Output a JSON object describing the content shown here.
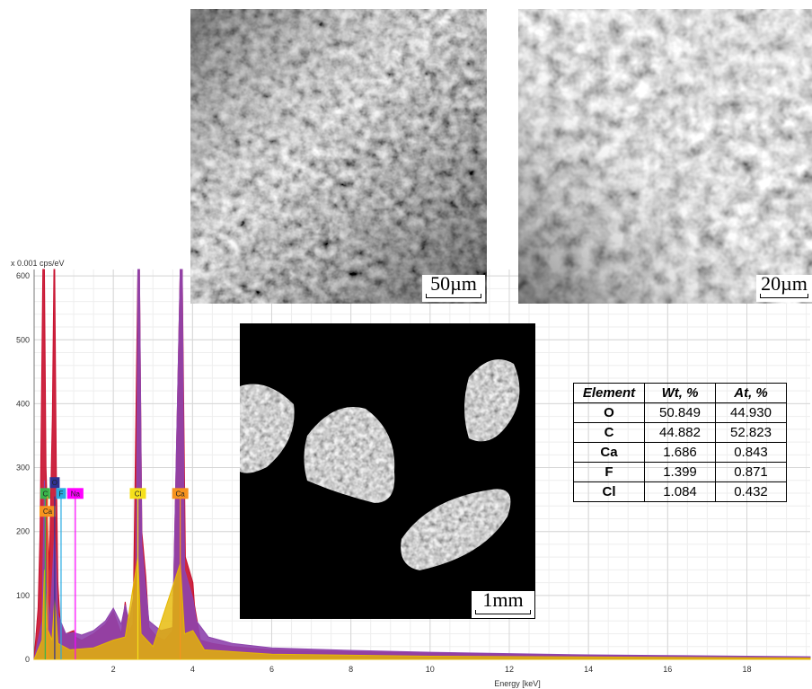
{
  "chart_data": {
    "type": "line",
    "title": "",
    "xlabel": "Energy [keV]",
    "ylabel": "x 0.001 cps/eV",
    "xlim": [
      0,
      19.6
    ],
    "ylim": [
      0,
      610
    ],
    "x_ticks": [
      2,
      4,
      6,
      8,
      10,
      12,
      14,
      16,
      18
    ],
    "y_ticks": [
      0,
      100,
      200,
      300,
      400,
      500,
      600
    ],
    "grid": true,
    "series": [
      {
        "color": "#c8102e",
        "x": [
          0.0,
          0.1,
          0.15,
          0.22,
          0.26,
          0.3,
          0.38,
          0.46,
          0.5,
          0.52,
          0.56,
          0.6,
          0.66,
          0.8,
          1.0,
          1.04,
          1.2,
          1.5,
          1.8,
          2.0,
          2.2,
          2.3,
          2.4,
          2.5,
          2.62,
          2.66,
          2.72,
          2.82,
          2.9,
          3.1,
          3.3,
          3.5,
          3.69,
          3.74,
          3.82,
          4.01,
          4.05,
          4.2,
          4.5,
          5.0,
          6.0,
          8.0,
          10.0,
          12.0,
          14.0,
          16.0,
          18.0,
          19.6
        ],
        "y": [
          0,
          80,
          200,
          610,
          610,
          300,
          140,
          380,
          610,
          610,
          300,
          120,
          55,
          40,
          45,
          35,
          30,
          40,
          55,
          75,
          40,
          90,
          45,
          55,
          610,
          610,
          200,
          130,
          50,
          35,
          30,
          45,
          610,
          610,
          160,
          120,
          85,
          30,
          25,
          20,
          15,
          12,
          10,
          8,
          6,
          5,
          4,
          3
        ]
      },
      {
        "color": "#8e44ad",
        "x": [
          0.0,
          0.2,
          0.26,
          0.3,
          0.4,
          0.52,
          0.6,
          0.8,
          1.0,
          1.2,
          1.5,
          1.8,
          2.0,
          2.2,
          2.3,
          2.4,
          2.58,
          2.62,
          2.66,
          2.72,
          2.82,
          2.9,
          3.2,
          3.5,
          3.69,
          3.74,
          3.8,
          4.01,
          4.1,
          4.4,
          5.0,
          6.0,
          8.0,
          10.0,
          12.0,
          14.0,
          16.0,
          18.0,
          19.6
        ],
        "y": [
          0,
          60,
          280,
          120,
          60,
          200,
          70,
          40,
          42,
          38,
          45,
          60,
          80,
          55,
          85,
          60,
          120,
          610,
          610,
          180,
          110,
          60,
          45,
          50,
          610,
          610,
          140,
          95,
          60,
          35,
          25,
          18,
          14,
          11,
          9,
          7,
          6,
          5,
          4
        ]
      },
      {
        "color": "#e6b800",
        "x": [
          0.0,
          0.2,
          0.26,
          0.32,
          0.45,
          0.52,
          0.6,
          0.9,
          1.5,
          2.0,
          2.3,
          2.62,
          2.7,
          3.0,
          3.69,
          3.8,
          4.01,
          4.3,
          6.0,
          10.0,
          19.6
        ],
        "y": [
          0,
          30,
          140,
          50,
          30,
          95,
          25,
          15,
          18,
          30,
          35,
          160,
          40,
          20,
          150,
          40,
          45,
          15,
          8,
          5,
          2
        ]
      }
    ],
    "element_markers": [
      {
        "label": "C",
        "energy": 0.28,
        "color": "#39b54a"
      },
      {
        "label": "Ca",
        "energy": 0.34,
        "color": "#f7931e"
      },
      {
        "label": "O",
        "energy": 0.52,
        "color": "#2e3192"
      },
      {
        "label": "F",
        "energy": 0.68,
        "color": "#29abe2"
      },
      {
        "label": "Na",
        "energy": 1.04,
        "color": "#ff00ff"
      },
      {
        "label": "Cl",
        "energy": 2.62,
        "color": "#f5e01b"
      },
      {
        "label": "Ca",
        "energy": 3.69,
        "color": "#f7931e"
      }
    ]
  },
  "sem_images": [
    {
      "scale_label": "50µm"
    },
    {
      "scale_label": "20µm"
    },
    {
      "scale_label": "1mm"
    }
  ],
  "composition_table": {
    "headers": [
      "Element",
      "Wt, %",
      "At, %"
    ],
    "rows": [
      {
        "element": "O",
        "wt": "50.849",
        "at": "44.930"
      },
      {
        "element": "C",
        "wt": "44.882",
        "at": "52.823"
      },
      {
        "element": "Ca",
        "wt": "1.686",
        "at": "0.843"
      },
      {
        "element": "F",
        "wt": "1.399",
        "at": "0.871"
      },
      {
        "element": "Cl",
        "wt": "1.084",
        "at": "0.432"
      }
    ]
  }
}
